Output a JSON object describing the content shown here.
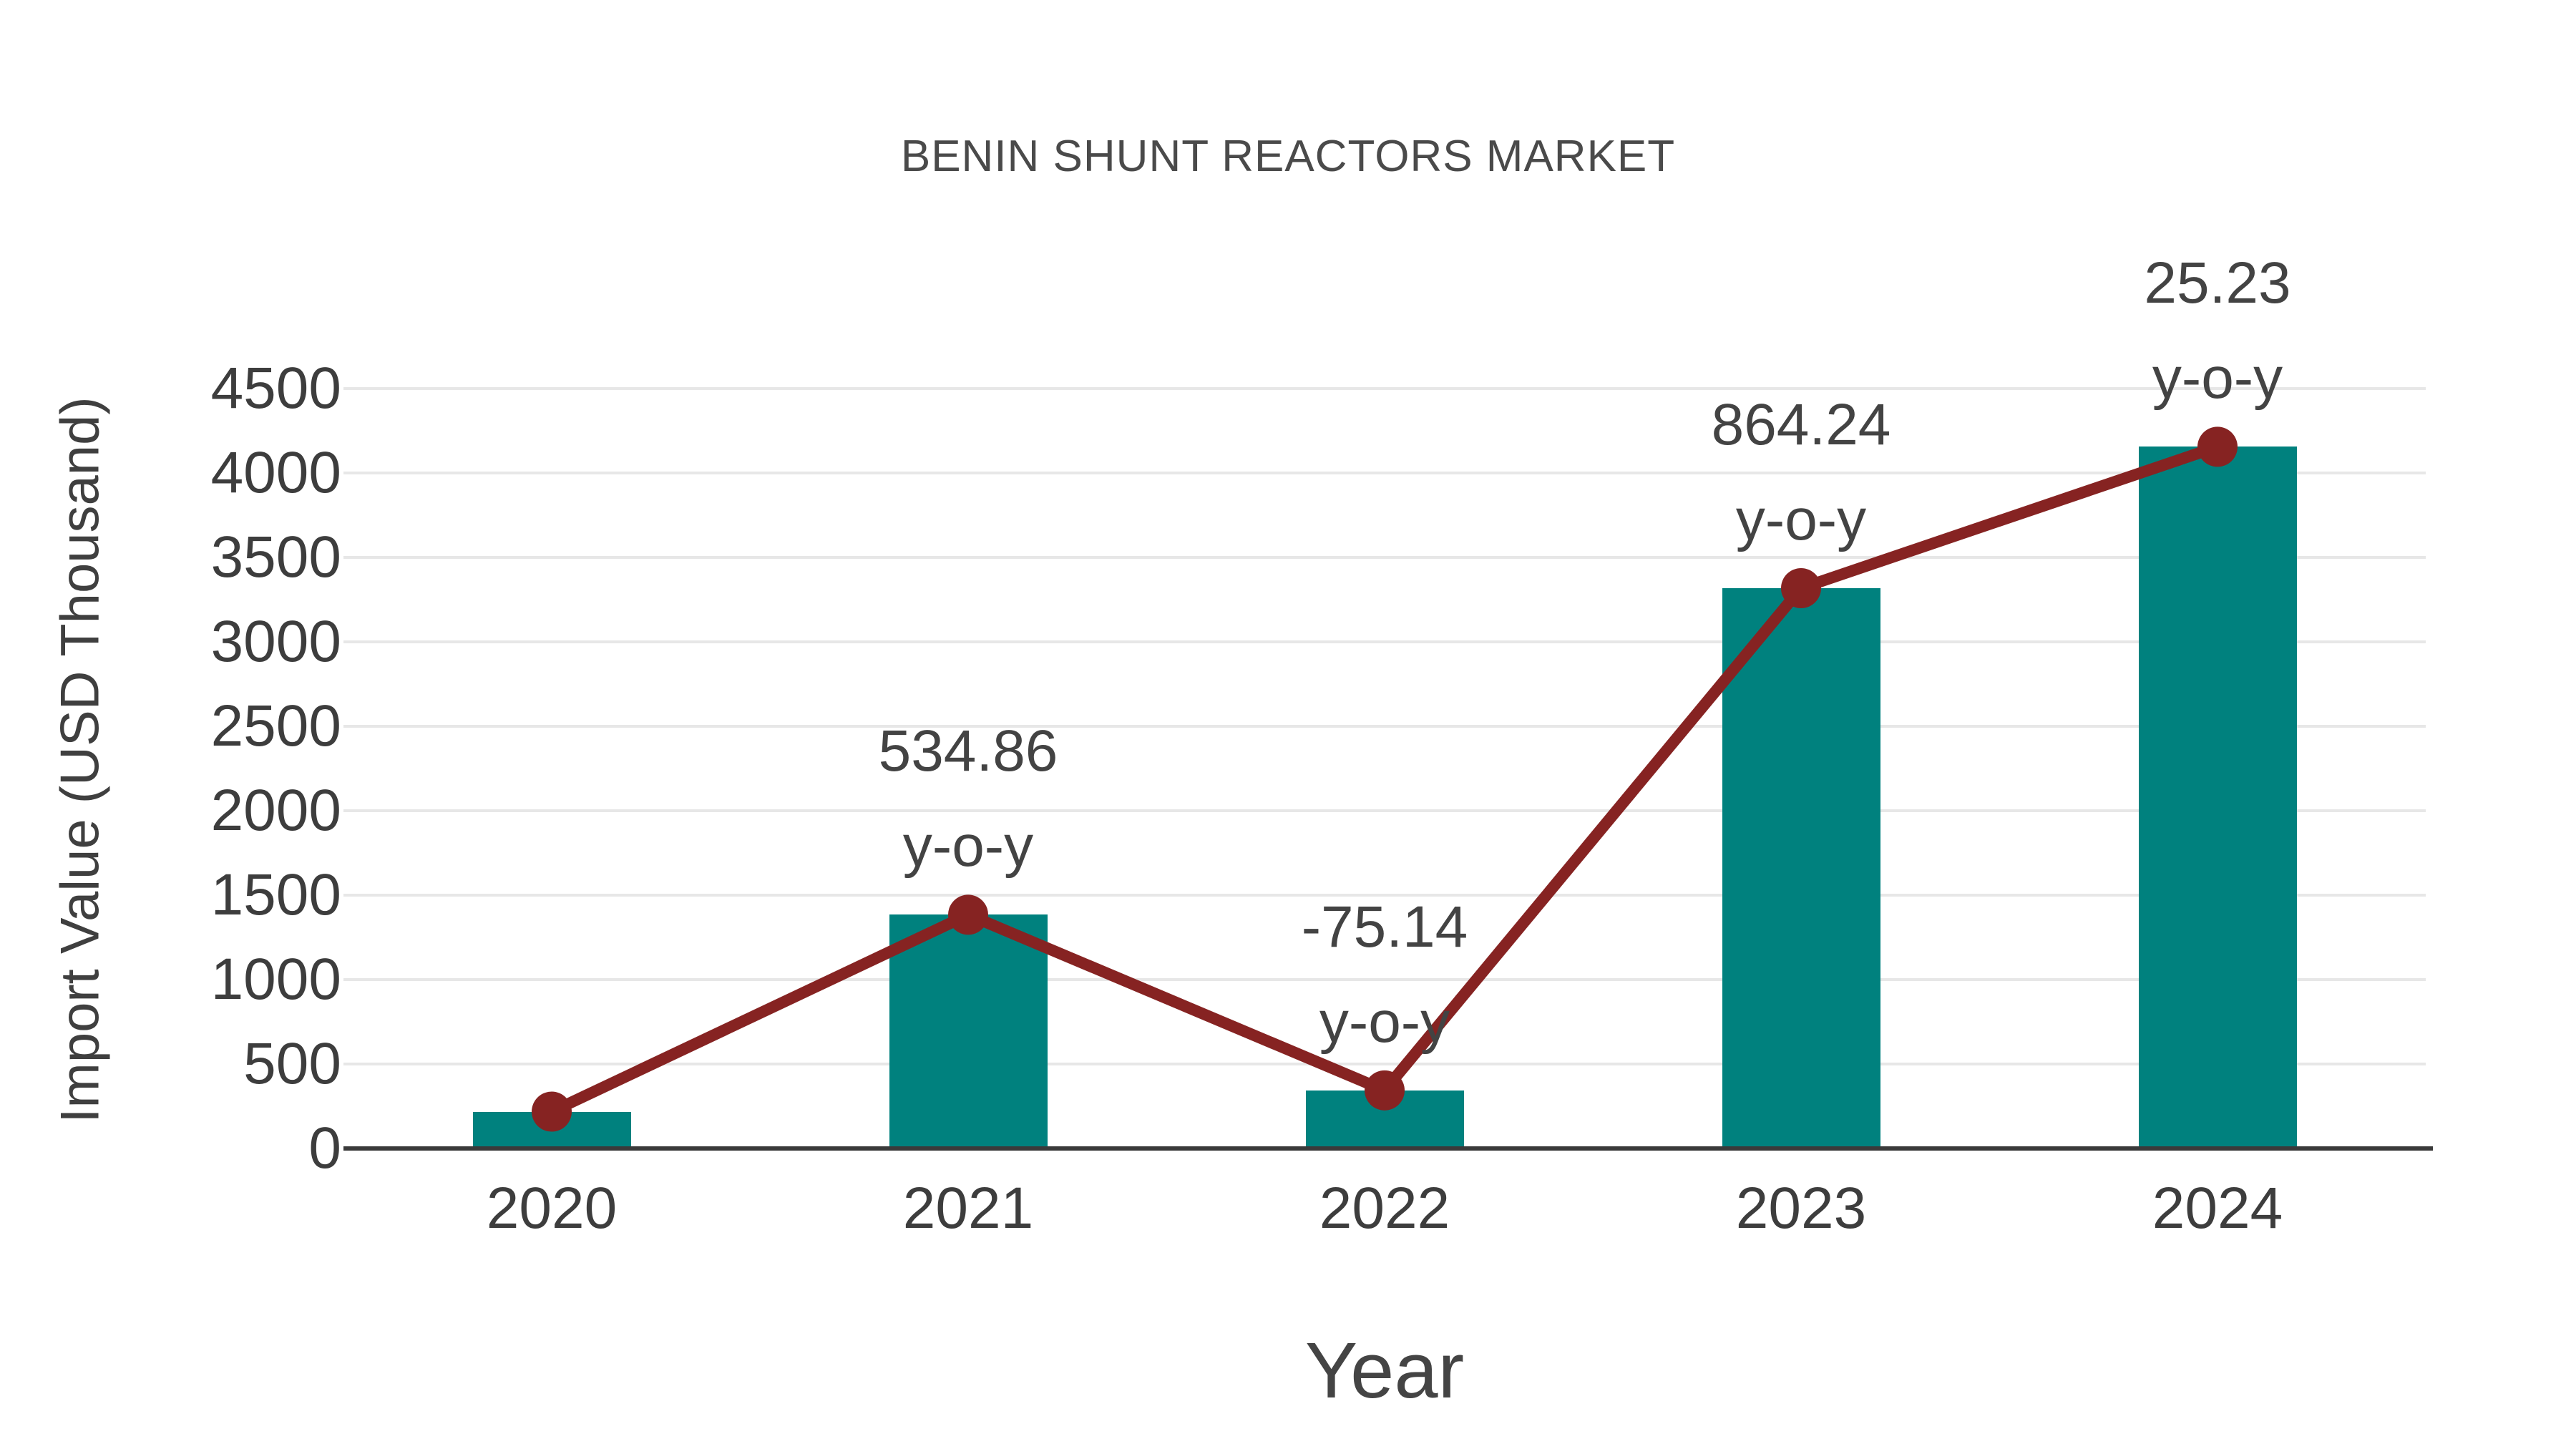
{
  "title": "BENIN SHUNT REACTORS MARKET",
  "colors": {
    "bar": "#00817e",
    "line": "#862322",
    "marker": "#862322",
    "grid": "#e7e7e7",
    "axis": "#3a3a3a",
    "text": "#3d3d3d"
  },
  "chart_data": {
    "type": "bar",
    "title": "BENIN SHUNT REACTORS MARKET",
    "xlabel": "Year",
    "ylabel": "Import Value (USD Thousand)",
    "categories": [
      "2020",
      "2021",
      "2022",
      "2023",
      "2024"
    ],
    "series": [
      {
        "name": "Import Value bars",
        "type": "bar",
        "values": [
          218,
          1384,
          344,
          3318,
          4155
        ]
      },
      {
        "name": "Import Value trend",
        "type": "line",
        "values": [
          218,
          1384,
          344,
          3318,
          4155
        ]
      }
    ],
    "annotations": [
      {
        "category": "2021",
        "value_label": "534.86",
        "suffix": "y-o-y"
      },
      {
        "category": "2022",
        "value_label": "-75.14",
        "suffix": "y-o-y"
      },
      {
        "category": "2023",
        "value_label": "864.24",
        "suffix": "y-o-y"
      },
      {
        "category": "2024",
        "value_label": "25.23",
        "suffix": "y-o-y"
      }
    ],
    "ylim": [
      0,
      4500
    ],
    "ytick_step": 500,
    "yticks": [
      "0",
      "500",
      "1000",
      "1500",
      "2000",
      "2500",
      "3000",
      "3500",
      "4000",
      "4500"
    ],
    "grid": true,
    "legend_position": "none"
  }
}
